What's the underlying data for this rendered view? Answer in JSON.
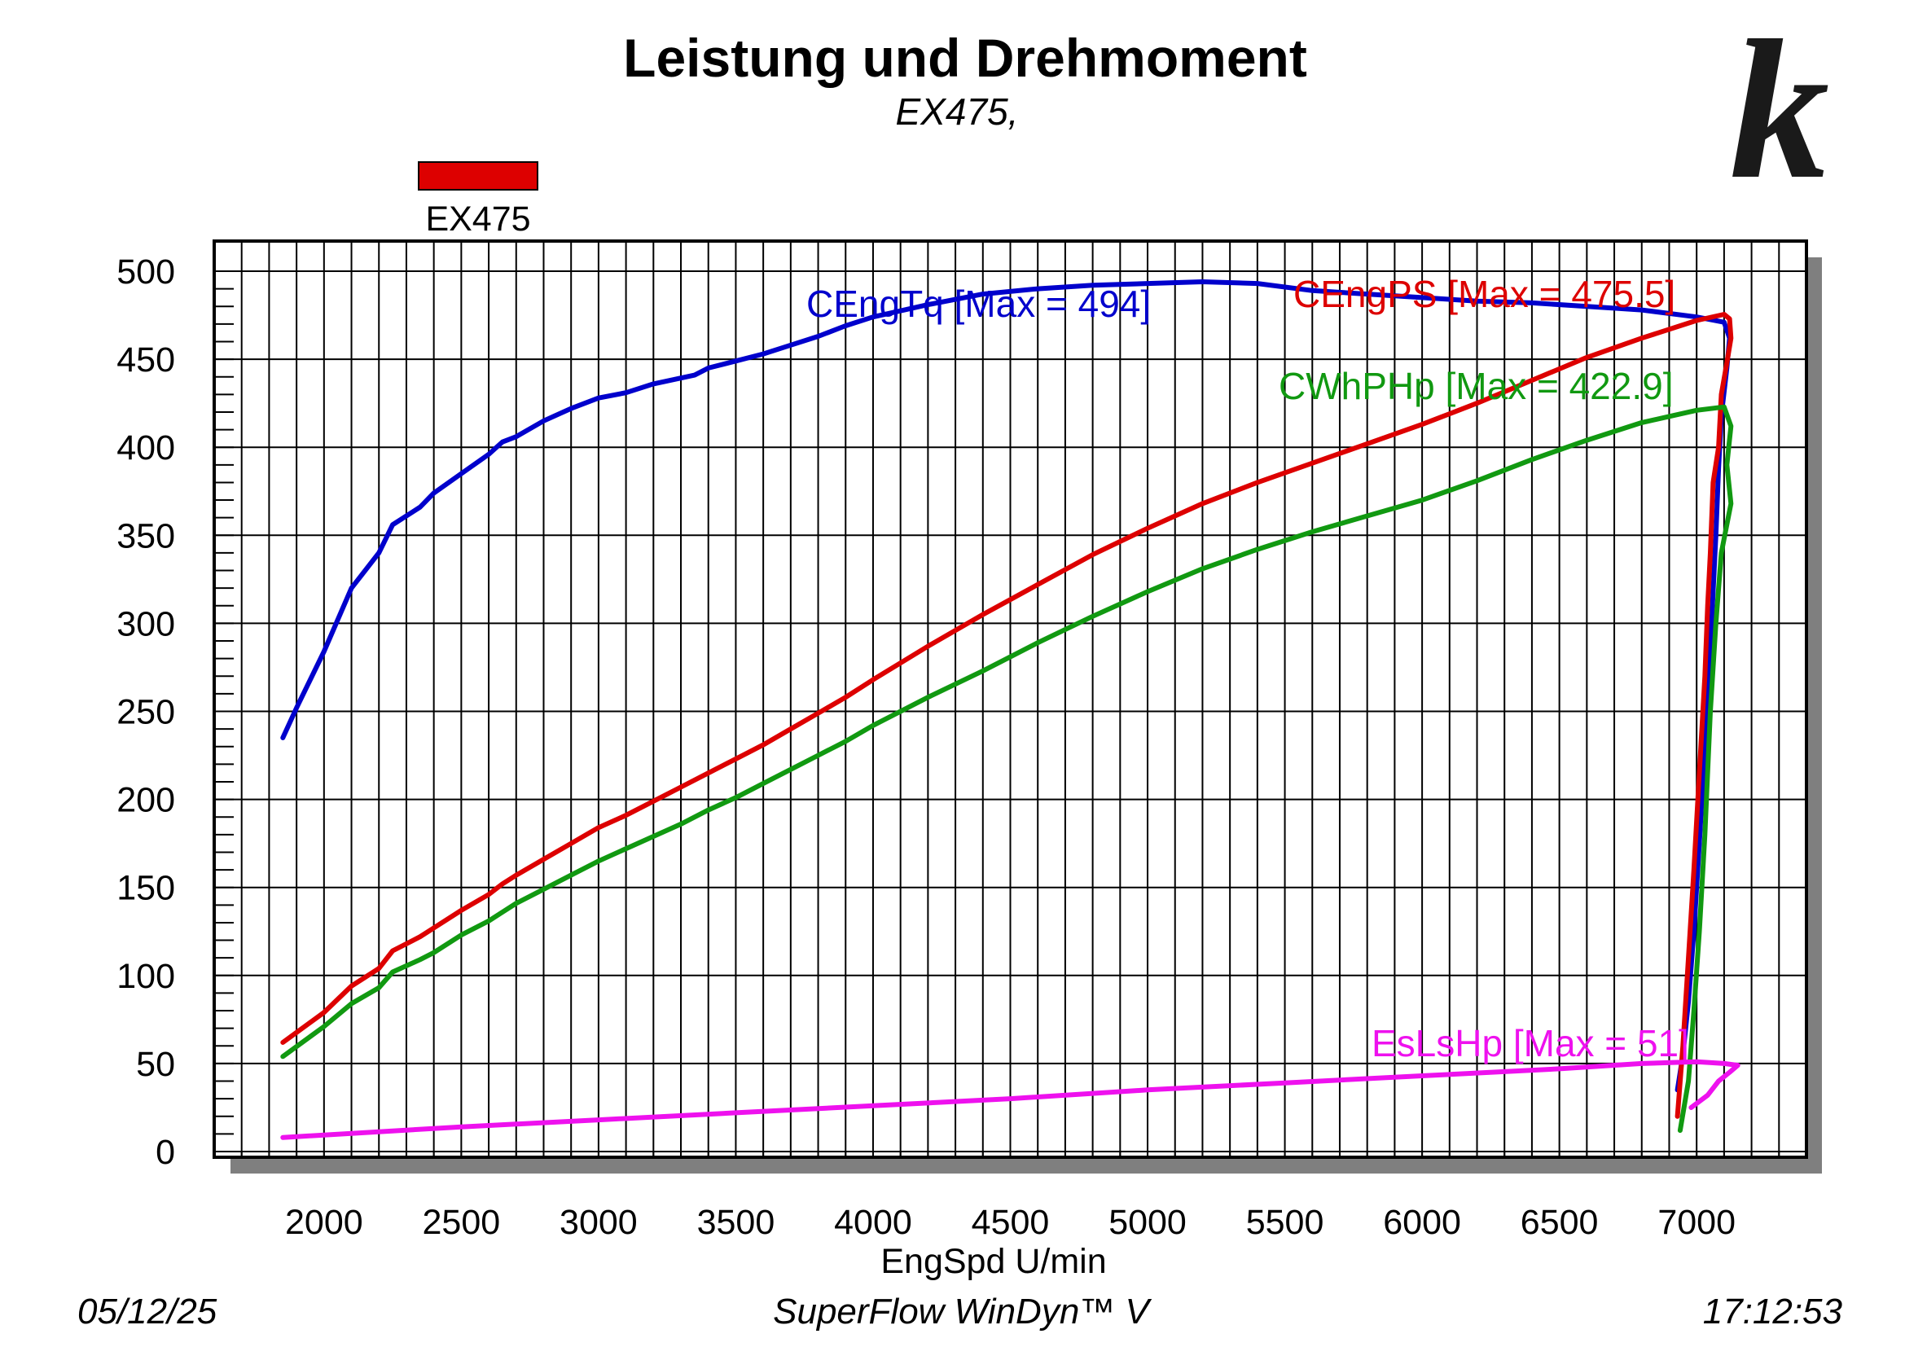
{
  "chart_data": {
    "type": "line",
    "title": "Leistung und Drehmoment",
    "subtitle": "EX475,",
    "xlabel": "EngSpd U/min",
    "ylabel": "",
    "xlim": [
      1600,
      7400
    ],
    "ylim": [
      0,
      500
    ],
    "x_ticks": [
      2000,
      2500,
      3000,
      3500,
      4000,
      4500,
      5000,
      5500,
      6000,
      6500,
      7000
    ],
    "y_ticks": [
      0,
      50,
      100,
      150,
      200,
      250,
      300,
      350,
      400,
      450,
      500
    ],
    "grid": true,
    "legend": {
      "position": "top-left",
      "entries": [
        {
          "name": "EX475",
          "color": "#dd0000"
        }
      ]
    },
    "series": [
      {
        "name": "CEngTq",
        "label": "CEngTq [Max = 494]",
        "color": "#0000cc",
        "points": [
          [
            1850,
            235
          ],
          [
            1900,
            252
          ],
          [
            2000,
            284
          ],
          [
            2100,
            320
          ],
          [
            2200,
            340
          ],
          [
            2250,
            356
          ],
          [
            2350,
            366
          ],
          [
            2400,
            374
          ],
          [
            2500,
            385
          ],
          [
            2600,
            396
          ],
          [
            2650,
            403
          ],
          [
            2700,
            406
          ],
          [
            2800,
            415
          ],
          [
            2900,
            422
          ],
          [
            3000,
            428
          ],
          [
            3100,
            431
          ],
          [
            3200,
            436
          ],
          [
            3350,
            441
          ],
          [
            3400,
            445
          ],
          [
            3500,
            449
          ],
          [
            3600,
            453
          ],
          [
            3700,
            458
          ],
          [
            3800,
            463
          ],
          [
            3900,
            469
          ],
          [
            4000,
            474
          ],
          [
            4200,
            481
          ],
          [
            4400,
            487
          ],
          [
            4600,
            490
          ],
          [
            4800,
            492
          ],
          [
            5000,
            493
          ],
          [
            5200,
            494
          ],
          [
            5400,
            493
          ],
          [
            5600,
            489
          ],
          [
            5800,
            487
          ],
          [
            6000,
            485
          ],
          [
            6200,
            483
          ],
          [
            6400,
            482
          ],
          [
            6600,
            480
          ],
          [
            6800,
            478
          ],
          [
            7000,
            474
          ],
          [
            7100,
            471
          ],
          [
            7120,
            462
          ],
          [
            7110,
            445
          ],
          [
            7090,
            418
          ],
          [
            7080,
            388
          ],
          [
            7070,
            350
          ],
          [
            7060,
            318
          ],
          [
            7050,
            285
          ],
          [
            7030,
            230
          ],
          [
            7010,
            175
          ],
          [
            6990,
            125
          ],
          [
            6970,
            85
          ],
          [
            6950,
            55
          ],
          [
            6930,
            35
          ]
        ]
      },
      {
        "name": "CEngPS",
        "label": "CEngPS [Max = 475.5]",
        "color": "#dd0000",
        "points": [
          [
            1850,
            62
          ],
          [
            2000,
            79
          ],
          [
            2100,
            94
          ],
          [
            2200,
            104
          ],
          [
            2250,
            114
          ],
          [
            2350,
            122
          ],
          [
            2400,
            127
          ],
          [
            2500,
            137
          ],
          [
            2600,
            146
          ],
          [
            2650,
            152
          ],
          [
            2700,
            157
          ],
          [
            2800,
            166
          ],
          [
            2900,
            175
          ],
          [
            3000,
            184
          ],
          [
            3100,
            191
          ],
          [
            3200,
            199
          ],
          [
            3300,
            207
          ],
          [
            3400,
            215
          ],
          [
            3500,
            223
          ],
          [
            3600,
            231
          ],
          [
            3700,
            240
          ],
          [
            3800,
            249
          ],
          [
            3900,
            258
          ],
          [
            4000,
            268
          ],
          [
            4200,
            287
          ],
          [
            4400,
            305
          ],
          [
            4600,
            322
          ],
          [
            4800,
            339
          ],
          [
            5000,
            354
          ],
          [
            5200,
            368
          ],
          [
            5400,
            380
          ],
          [
            5600,
            391
          ],
          [
            5800,
            402
          ],
          [
            6000,
            413
          ],
          [
            6200,
            425
          ],
          [
            6400,
            438
          ],
          [
            6600,
            451
          ],
          [
            6800,
            462
          ],
          [
            7000,
            472
          ],
          [
            7100,
            475.5
          ],
          [
            7120,
            473
          ],
          [
            7125,
            462
          ],
          [
            7110,
            448
          ],
          [
            7090,
            430
          ],
          [
            7080,
            400
          ],
          [
            7060,
            380
          ],
          [
            7050,
            340
          ],
          [
            7040,
            310
          ],
          [
            7030,
            270
          ],
          [
            7010,
            215
          ],
          [
            6990,
            160
          ],
          [
            6970,
            110
          ],
          [
            6950,
            60
          ],
          [
            6930,
            20
          ]
        ]
      },
      {
        "name": "CWhPHp",
        "label": "CWhPHp [Max = 422.9]",
        "color": "#119911",
        "points": [
          [
            1850,
            54
          ],
          [
            2000,
            71
          ],
          [
            2100,
            84
          ],
          [
            2200,
            93
          ],
          [
            2250,
            102
          ],
          [
            2350,
            109
          ],
          [
            2400,
            113
          ],
          [
            2500,
            123
          ],
          [
            2600,
            131
          ],
          [
            2650,
            136
          ],
          [
            2700,
            141
          ],
          [
            2800,
            149
          ],
          [
            2900,
            157
          ],
          [
            3000,
            165
          ],
          [
            3100,
            172
          ],
          [
            3200,
            179
          ],
          [
            3300,
            186
          ],
          [
            3400,
            194
          ],
          [
            3500,
            201
          ],
          [
            3600,
            209
          ],
          [
            3700,
            217
          ],
          [
            3800,
            225
          ],
          [
            3900,
            233
          ],
          [
            4000,
            242
          ],
          [
            4200,
            258
          ],
          [
            4400,
            273
          ],
          [
            4600,
            289
          ],
          [
            4800,
            304
          ],
          [
            5000,
            318
          ],
          [
            5200,
            331
          ],
          [
            5400,
            342
          ],
          [
            5600,
            352
          ],
          [
            5800,
            361
          ],
          [
            6000,
            370
          ],
          [
            6200,
            381
          ],
          [
            6400,
            393
          ],
          [
            6600,
            404
          ],
          [
            6800,
            414
          ],
          [
            7000,
            421
          ],
          [
            7100,
            422.9
          ],
          [
            7125,
            412
          ],
          [
            7110,
            390
          ],
          [
            7125,
            368
          ],
          [
            7090,
            340
          ],
          [
            7070,
            300
          ],
          [
            7050,
            250
          ],
          [
            7030,
            180
          ],
          [
            7010,
            125
          ],
          [
            6990,
            80
          ],
          [
            6970,
            40
          ],
          [
            6940,
            12
          ]
        ]
      },
      {
        "name": "EsLsHp",
        "label": "EsLsHp [Max = 51]",
        "color": "#ee11ee",
        "points": [
          [
            1850,
            8
          ],
          [
            2500,
            14
          ],
          [
            3000,
            18
          ],
          [
            3500,
            22
          ],
          [
            4000,
            26
          ],
          [
            4500,
            30
          ],
          [
            5000,
            35
          ],
          [
            5500,
            39
          ],
          [
            6000,
            43
          ],
          [
            6500,
            47
          ],
          [
            6800,
            50
          ],
          [
            7000,
            51
          ],
          [
            7100,
            50
          ],
          [
            7150,
            49
          ],
          [
            7120,
            45
          ],
          [
            7080,
            40
          ],
          [
            7040,
            32
          ],
          [
            6980,
            25
          ]
        ]
      }
    ]
  },
  "footer": {
    "date": "05/12/25",
    "software": "SuperFlow WinDyn™ V",
    "time": "17:12:53"
  },
  "colors": {
    "grid": "#000000",
    "shadow": "#7f7f7f",
    "logo": "#1a1a1a"
  },
  "logo": {
    "icon": "k-logo",
    "text": "k"
  }
}
